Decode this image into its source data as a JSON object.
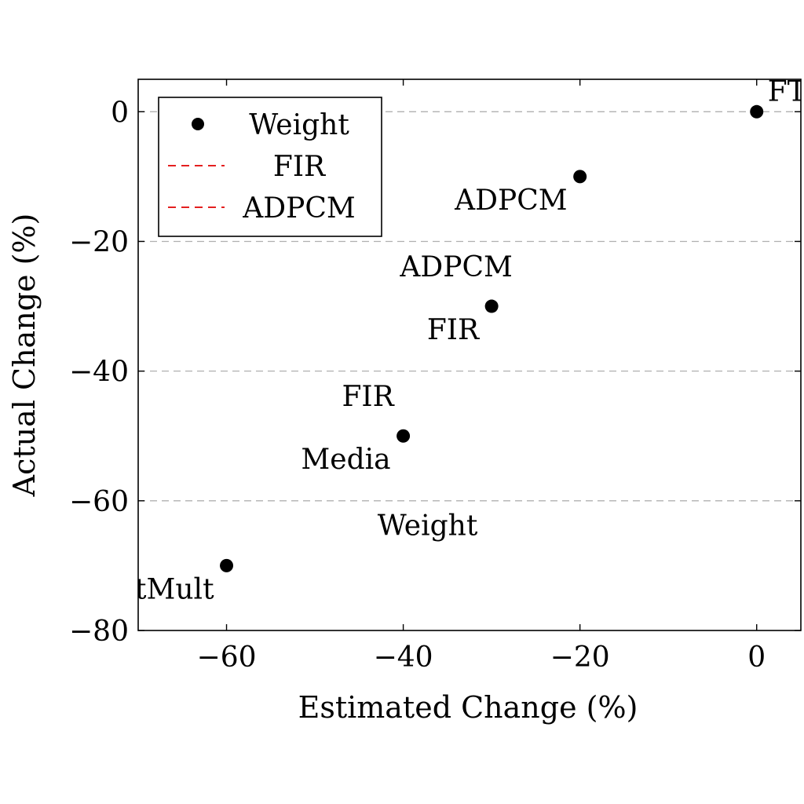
{
  "chart_data": {
    "type": "scatter",
    "xlabel": "Estimated Change (%)",
    "ylabel": "Actual Change (%)",
    "xlim": [
      -70,
      5
    ],
    "ylim": [
      -80,
      5
    ],
    "xticks": [
      -60,
      -40,
      -20,
      0
    ],
    "yticks": [
      0,
      -20,
      -40,
      -60,
      -80
    ],
    "xtick_labels": [
      "−60",
      "−40",
      "−20",
      "0"
    ],
    "ytick_labels": [
      "0",
      "−20",
      "−40",
      "−60",
      "−80"
    ],
    "grid": "horizontal dashed",
    "legend_position": "top-left",
    "legend": [
      {
        "label": "Weight",
        "marker": "filled-circle",
        "color": "#000000"
      },
      {
        "label": "FIR",
        "marker": "dashed-line",
        "color": "#e00000"
      },
      {
        "label": "ADPCM",
        "marker": "dashed-line",
        "color": "#e00000"
      }
    ],
    "points": [
      {
        "x": 0,
        "y": 0
      },
      {
        "x": -20,
        "y": -10
      },
      {
        "x": -30,
        "y": -30
      },
      {
        "x": -40,
        "y": -50
      },
      {
        "x": -60,
        "y": -70
      }
    ],
    "annotations": [
      {
        "text": "FTM",
        "x": 0,
        "y": 0,
        "pos": "above-right"
      },
      {
        "text": "ADPCM",
        "x": -20,
        "y": -10,
        "pos": "below-left"
      },
      {
        "text": "ADPCM",
        "x": -30,
        "y": -30,
        "pos": "above"
      },
      {
        "text": "FIR",
        "x": -30,
        "y": -30,
        "pos": "below-left"
      },
      {
        "text": "FIR",
        "x": -40,
        "y": -50,
        "pos": "above"
      },
      {
        "text": "Media",
        "x": -40,
        "y": -50,
        "pos": "below-left"
      },
      {
        "text": "Weight",
        "x": -60,
        "y": -70,
        "pos": "above-far"
      },
      {
        "text": "FastMult",
        "x": -60,
        "y": -70,
        "pos": "below-left"
      }
    ],
    "colors": {
      "points": "#000000",
      "grid": "#b0b0b0",
      "legend_lines": "#e00000"
    }
  }
}
